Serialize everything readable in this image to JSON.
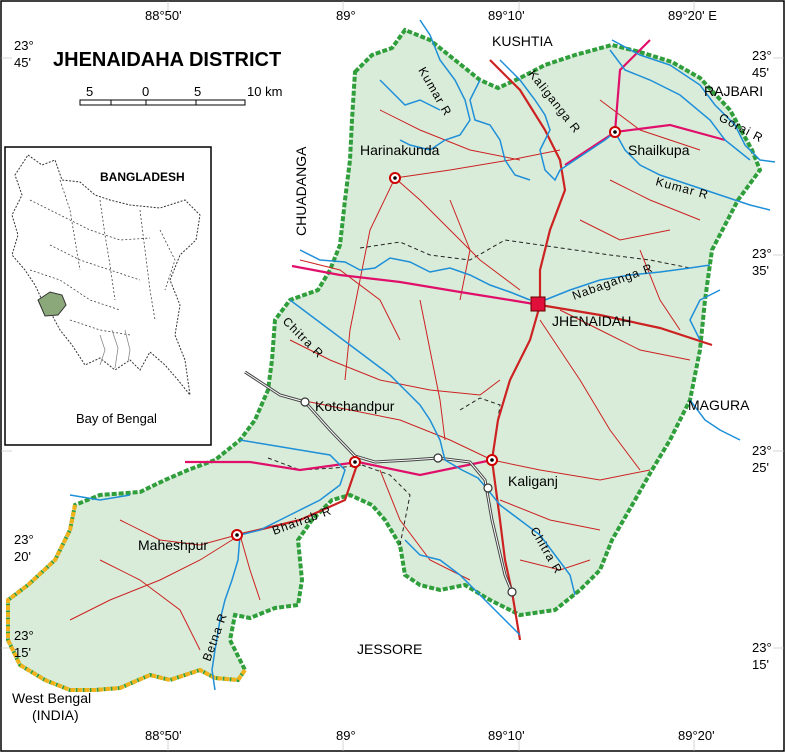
{
  "title": "JHENAIDAHA DISTRICT",
  "scale_bar": {
    "labels": [
      "5",
      "0",
      "5",
      "10 km"
    ]
  },
  "graticule": {
    "top": [
      "88°50'",
      "89°",
      "89°10'",
      "89°20' E"
    ],
    "bottom": [
      "88°50'",
      "89°",
      "89°10'",
      "89°20'"
    ],
    "left": [
      [
        "23°",
        "45'"
      ],
      [
        "23°",
        "20'"
      ],
      [
        "23°",
        "15'"
      ]
    ],
    "right": [
      [
        "23°",
        "45'"
      ],
      [
        "23°",
        "35'"
      ],
      [
        "23°",
        "25'"
      ],
      [
        "23°",
        "15'"
      ]
    ]
  },
  "neighbours": {
    "kushtia": "KUSHTIA",
    "rajbari": "RAJBARI",
    "chuadanga": "CHUADANGA",
    "magura": "MAGURA",
    "jessore": "JESSORE",
    "west_bengal": "West Bengal",
    "india": "(INDIA)"
  },
  "places": {
    "jhenaidah": "JHENAIDAH",
    "harinakunda": "Harinakunda",
    "shailkupa": "Shailkupa",
    "kotchandpur": "Kotchandpur",
    "kaliganj": "Kaliganj",
    "maheshpur": "Maheshpur"
  },
  "rivers": {
    "kumar_nw": "Kumar R",
    "kaliganga": "Kaliganga R",
    "gorai": "Gorai R",
    "kumar_e": "Kumar R",
    "nabaganga": "Nabaganga R",
    "chitra_w": "Chitra R",
    "bhairab": "Bhairab R",
    "chitra_s": "Chitra R",
    "betna": "Betna R"
  },
  "inset": {
    "title": "BANGLADESH",
    "caption": "Bay of Bengal"
  },
  "colors": {
    "district_fill": "#d9ecd9",
    "boundary": "#2f9e3b",
    "intl_border": "#f2b21b",
    "river": "#1e8fd8",
    "highway": "#e0106a",
    "road": "#cc2222",
    "railway": "#444444",
    "inset_highlight": "#8aa87a"
  }
}
